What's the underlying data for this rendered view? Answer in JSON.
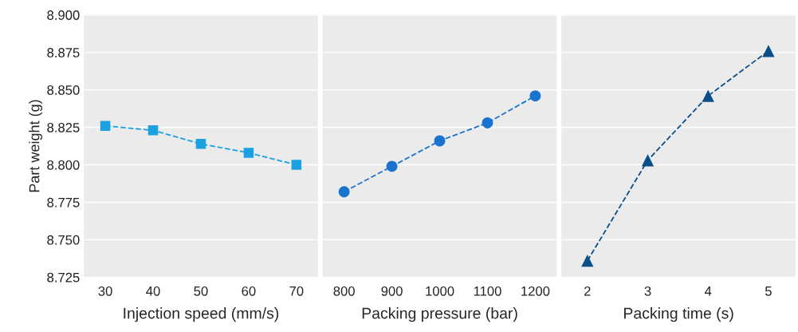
{
  "chart_data": [
    {
      "type": "line",
      "xlabel": "Injection speed (mm/s)",
      "ylabel": "Part weight (g)",
      "x": [
        30,
        40,
        50,
        60,
        70
      ],
      "series": [
        {
          "color": "#1ba1e2",
          "values": [
            8.826,
            8.823,
            8.814,
            8.808,
            8.8
          ]
        }
      ],
      "xlim": [
        25.5,
        74.5
      ],
      "xticks": [
        30,
        40,
        50,
        60,
        70
      ],
      "ylim": [
        8.725,
        8.9
      ],
      "yticks": [
        {
          "value": 8.725,
          "label": "8.725"
        },
        {
          "value": 8.75,
          "label": "8.750"
        },
        {
          "value": 8.775,
          "label": "8.775"
        },
        {
          "value": 8.8,
          "label": "8.800"
        },
        {
          "value": 8.825,
          "label": "8.825"
        },
        {
          "value": 8.85,
          "label": "8.850"
        },
        {
          "value": 8.875,
          "label": "8.875"
        },
        {
          "value": 8.9,
          "label": "8.900"
        }
      ],
      "grid": "y",
      "marker": "square",
      "line_style": "dashed"
    },
    {
      "type": "line",
      "xlabel": "Packing pressure (bar)",
      "x": [
        800,
        900,
        1000,
        1100,
        1200
      ],
      "series": [
        {
          "color": "#1a73cf",
          "values": [
            8.782,
            8.799,
            8.816,
            8.828,
            8.846
          ]
        }
      ],
      "xlim": [
        755,
        1245
      ],
      "xticks": [
        800,
        900,
        1000,
        1100,
        1200
      ],
      "ylim": [
        8.725,
        8.9
      ],
      "yticks": [
        8.725,
        8.75,
        8.775,
        8.8,
        8.825,
        8.85,
        8.875,
        8.9
      ],
      "grid": "y",
      "marker": "circle",
      "line_style": "dashed",
      "tick_labels": "x"
    },
    {
      "type": "line",
      "xlabel": "Packing time (s)",
      "x": [
        2,
        3,
        4,
        5
      ],
      "series": [
        {
          "color": "#0b4f8a",
          "values": [
            8.736,
            8.803,
            8.846,
            8.876
          ]
        }
      ],
      "xlim": [
        1.57,
        5.45
      ],
      "xticks": [
        2,
        3,
        4,
        5
      ],
      "ylim": [
        8.725,
        8.9
      ],
      "yticks": [
        8.725,
        8.75,
        8.775,
        8.8,
        8.825,
        8.85,
        8.875,
        8.9
      ],
      "grid": "y",
      "marker": "triangle",
      "line_style": "dashed",
      "tick_labels": "x"
    }
  ]
}
